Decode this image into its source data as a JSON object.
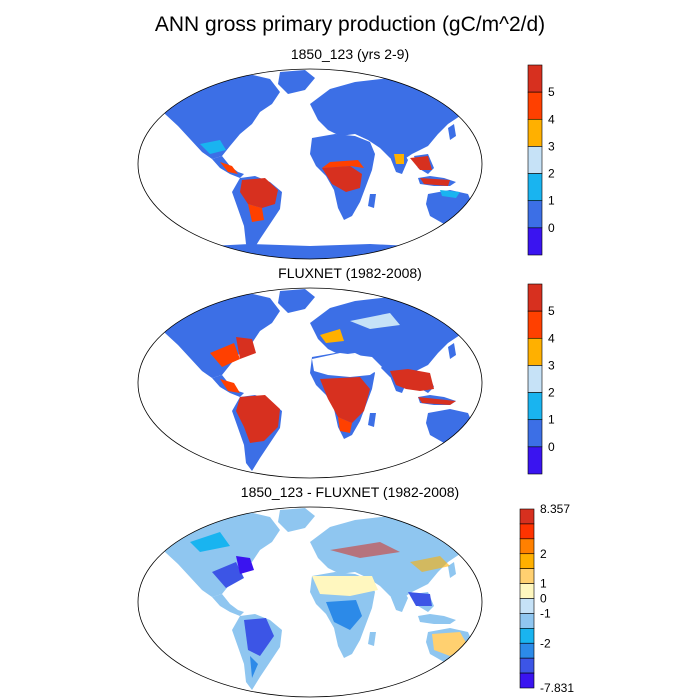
{
  "figure": {
    "title": "ANN gross primary production (gC/m^2/d)"
  },
  "panels": [
    {
      "title": "1850_123 (yrs 2-9)",
      "colorbar": {
        "labels": [
          "5",
          "4",
          "3",
          "2",
          "1",
          "0"
        ],
        "colors": [
          "#d7301f",
          "#ff4000",
          "#ffb000",
          "#c6e2f7",
          "#19b4f0",
          "#3c6fe6",
          "#3a14f0"
        ]
      }
    },
    {
      "title": "FLUXNET (1982-2008)",
      "colorbar": {
        "labels": [
          "5",
          "4",
          "3",
          "2",
          "1",
          "0"
        ],
        "colors": [
          "#d7301f",
          "#ff4000",
          "#ffb000",
          "#c6e2f7",
          "#19b4f0",
          "#3c6fe6",
          "#3a14f0"
        ]
      }
    },
    {
      "title": "1850_123 - FLUXNET (1982-2008)",
      "colorbar": {
        "labels": [
          "8.357",
          "2",
          "1",
          "0",
          "-1",
          "-2",
          "-7.831"
        ],
        "colors": [
          "#d7301f",
          "#ff3300",
          "#ff8000",
          "#ffb000",
          "#ffd070",
          "#fff7bf",
          "#c6e2f7",
          "#8fc6f0",
          "#19b4f0",
          "#2c8ae8",
          "#3c55e6",
          "#3a14f0"
        ]
      }
    }
  ]
}
